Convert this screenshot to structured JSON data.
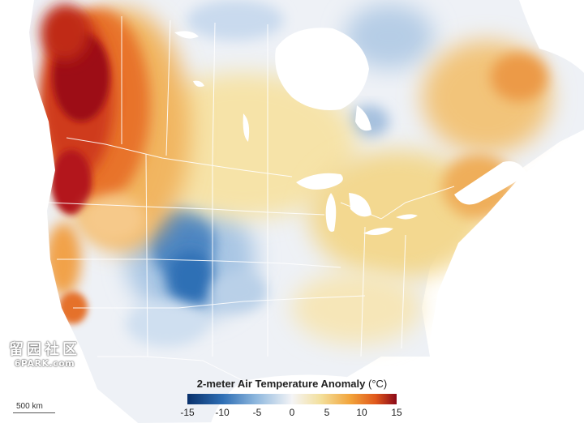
{
  "legend": {
    "title": "2-meter Air Temperature Anomaly",
    "unit": "(°C)",
    "ticks": [
      -15,
      -10,
      -5,
      0,
      5,
      10,
      15
    ],
    "tick_labels": [
      "-15",
      "-10",
      "-5",
      "0",
      "5",
      "10",
      "15"
    ],
    "colors": [
      "#08306b",
      "#2f6fb5",
      "#8fb8de",
      "#f4f4f6",
      "#f3df9a",
      "#f2a33a",
      "#e0581c",
      "#8a0818"
    ]
  },
  "scale_bar": {
    "label": "500 km"
  },
  "watermark": {
    "chars": "留园社区",
    "site": "6PARK.com"
  },
  "colors": {
    "land_neutral": "#eef1f6",
    "water": "#ffffff",
    "borders": "#ffffff"
  }
}
